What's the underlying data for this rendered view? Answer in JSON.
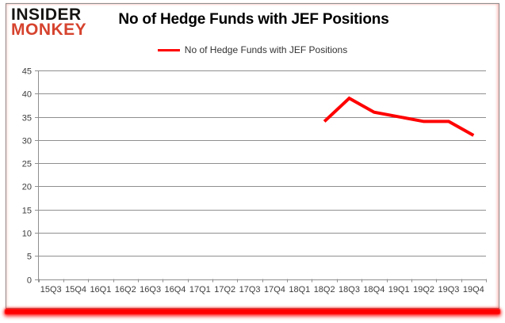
{
  "branding": {
    "logo_line1": "INSIDER",
    "logo_line2": "MONKEY",
    "logo_color1": "#161412",
    "logo_color2": "#d6432e"
  },
  "header": {
    "title": "No of Hedge Funds with JEF Positions"
  },
  "legend": {
    "label": "No of Hedge Funds with JEF Positions",
    "line_color": "#ff0000"
  },
  "colors": {
    "series_red": "#ff0000",
    "gridline_gray": "#8f8f8f",
    "axis_text": "#3d3d3d",
    "frame_border": "#8f8f8f",
    "bottom_glow": "#ff0000"
  },
  "chart_data": {
    "type": "line",
    "title": "No of Hedge Funds with JEF Positions",
    "categories": [
      "15Q3",
      "15Q4",
      "16Q1",
      "16Q2",
      "16Q3",
      "16Q4",
      "17Q1",
      "17Q2",
      "17Q3",
      "17Q4",
      "18Q1",
      "18Q2",
      "18Q3",
      "18Q4",
      "19Q1",
      "19Q2",
      "19Q3",
      "19Q4"
    ],
    "series": [
      {
        "name": "No of Hedge Funds with JEF Positions",
        "color": "#ff0000",
        "values": [
          null,
          null,
          null,
          null,
          null,
          null,
          null,
          null,
          null,
          null,
          null,
          34,
          39,
          36,
          35,
          34,
          34,
          31
        ]
      }
    ],
    "ylim": [
      0,
      45
    ],
    "yticks": [
      0,
      5,
      10,
      15,
      20,
      25,
      30,
      35,
      40,
      45
    ],
    "grid": true,
    "legend_position": "top-center",
    "xlabel": "",
    "ylabel": ""
  }
}
